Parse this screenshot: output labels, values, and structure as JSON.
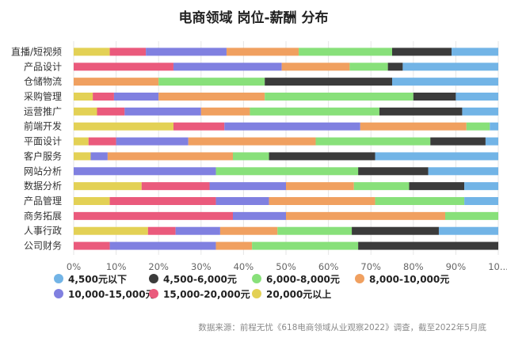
{
  "chart_data": {
    "type": "bar",
    "orientation": "horizontal",
    "stacked": true,
    "normalized": true,
    "title": "电商领域 岗位-薪酬 分布",
    "categories": [
      "直播/短视频",
      "产品设计",
      "仓储物流",
      "采购管理",
      "运营推广",
      "前端开发",
      "平面设计",
      "客户服务",
      "网站分析",
      "数据分析",
      "产品管理",
      "商务拓展",
      "人事行政",
      "公司财务"
    ],
    "xlim": [
      0,
      100
    ],
    "xticks": [
      "0%",
      "10%",
      "20%",
      "30%",
      "40%",
      "50%",
      "60%",
      "70%",
      "80%",
      "90%",
      "10..."
    ],
    "series": [
      {
        "name": "20,000元以上",
        "color": "#e3d155",
        "values": [
          8.5,
          0,
          0,
          4.5,
          5.5,
          23.5,
          3.5,
          4,
          0,
          16,
          8.5,
          0,
          17.5,
          0
        ]
      },
      {
        "name": "15,000-20,000元",
        "color": "#ea5a7c",
        "values": [
          8.5,
          23.5,
          0,
          5,
          6.5,
          12,
          6.5,
          0,
          0,
          16,
          25,
          37.5,
          6.5,
          8.5
        ]
      },
      {
        "name": "10,000-15,000元",
        "color": "#8080e0",
        "values": [
          19,
          25.5,
          0,
          10.5,
          18,
          32,
          17,
          4,
          33.5,
          18,
          12.5,
          12.5,
          10.5,
          25
        ]
      },
      {
        "name": "8,000-10,000元",
        "color": "#f0a060",
        "values": [
          17,
          16,
          20,
          25,
          11.5,
          25,
          30,
          29.5,
          0,
          16,
          25,
          37.5,
          13.5,
          8.5
        ]
      },
      {
        "name": "6,000-8,000元",
        "color": "#88e07a",
        "values": [
          22,
          9,
          25,
          35,
          30.5,
          5.5,
          27,
          8.5,
          33.5,
          13,
          21,
          12.5,
          17.5,
          25
        ]
      },
      {
        "name": "4,500-6,000元",
        "color": "#3b3b3b",
        "values": [
          14,
          3.5,
          30,
          10,
          19.5,
          0,
          13,
          25,
          16.5,
          13,
          0,
          0,
          20.5,
          33
        ]
      },
      {
        "name": "4,500元以下",
        "color": "#72b4e6",
        "values": [
          11,
          22.5,
          25,
          10,
          8.5,
          2,
          3,
          29,
          16.5,
          8,
          8,
          0,
          14,
          0
        ]
      }
    ],
    "legend": [
      {
        "name": "4,500元以下",
        "color": "#72b4e6"
      },
      {
        "name": "4,500-6,000元",
        "color": "#3b3b3b"
      },
      {
        "name": "6,000-8,000元",
        "color": "#88e07a"
      },
      {
        "name": "8,000-10,000元",
        "color": "#f0a060"
      },
      {
        "name": "10,000-15,000元",
        "color": "#8080e0"
      },
      {
        "name": "15,000-20,000元",
        "color": "#ea5a7c"
      },
      {
        "name": "20,000元以上",
        "color": "#e3d155"
      }
    ]
  },
  "source": "数据来源：前程无忧《618电商领域从业观察2022》调查，截至2022年5月底"
}
